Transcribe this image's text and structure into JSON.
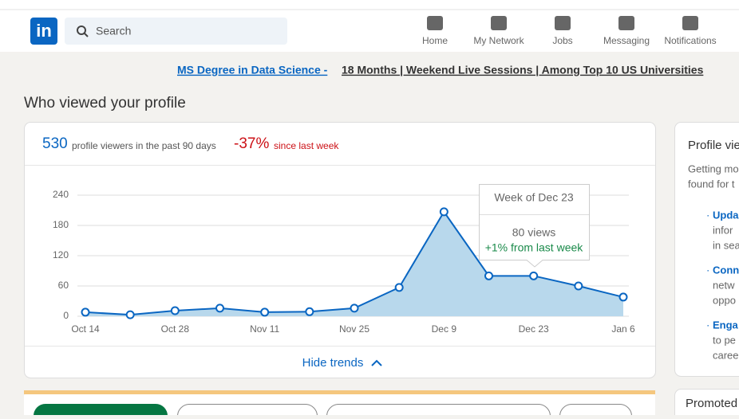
{
  "header": {
    "search": "Search",
    "nav": [
      "Home",
      "My Network",
      "Jobs",
      "Messaging",
      "Notifications"
    ]
  },
  "banner": {
    "link": "MS Degree in Data Science -",
    "text": "18 Months | Weekend Live Sessions | Among Top 10 US Universities"
  },
  "page_title": "Who viewed your profile",
  "stats": {
    "viewers": "530",
    "viewers_text": "profile viewers in the past 90 days",
    "change": "-37%",
    "change_text": "since last week"
  },
  "tooltip": {
    "title": "Week of Dec 23",
    "views": "80 views",
    "change": "+1% from last week"
  },
  "hide_trends": "Hide trends",
  "side": {
    "title": "Profile vie",
    "lines": [
      "Getting mo",
      "found for t"
    ],
    "items": [
      [
        "Upda",
        "infor",
        "in sea"
      ],
      [
        "Conn",
        "netw",
        "oppo"
      ],
      [
        "Enga",
        "to pe",
        "caree"
      ]
    ],
    "promoted": "Promoted"
  },
  "chart_data": {
    "type": "area",
    "categories": [
      "Oct 14",
      null,
      "Oct 28",
      null,
      "Nov 11",
      null,
      "Nov 25",
      null,
      "Dec 9",
      null,
      "Dec 23",
      null,
      "Jan 6"
    ],
    "values": [
      8,
      3,
      11,
      16,
      8,
      9,
      16,
      57,
      207,
      80,
      80,
      60,
      38
    ],
    "color": "#0a66c2",
    "fill": "#b8d8ec",
    "ylim": [
      0,
      240
    ],
    "yticks": [
      0,
      60,
      120,
      180,
      240
    ],
    "grid": true
  }
}
